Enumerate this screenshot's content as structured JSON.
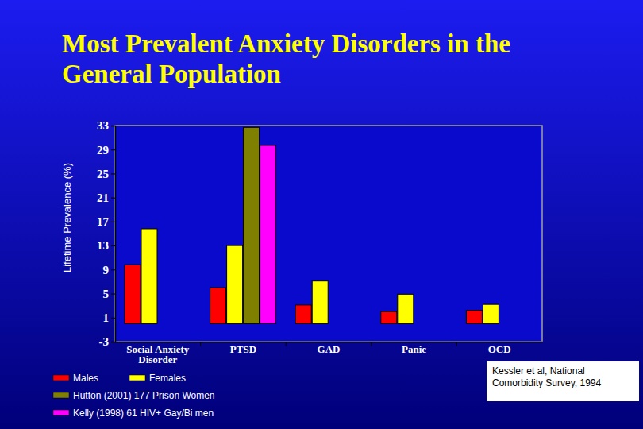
{
  "chart_data": {
    "type": "bar",
    "title": "Most Prevalent Anxiety Disorders in the General Population",
    "y_label": "Lifetime Prevalence (%)",
    "categories": [
      "Social Anxiety Disorder",
      "PTSD",
      "GAD",
      "Panic",
      "OCD"
    ],
    "series": [
      {
        "name": "Males",
        "color": "#ff0000",
        "values": [
          9.8,
          6.0,
          3.1,
          2.0,
          2.2
        ]
      },
      {
        "name": "Females",
        "color": "#ffff00",
        "values": [
          15.8,
          13.0,
          7.1,
          4.9,
          3.2
        ]
      },
      {
        "name": "Hutton (2001) 177 Prison Women",
        "color": "#808000",
        "values": [
          null,
          32.7,
          null,
          null,
          null
        ]
      },
      {
        "name": "Kelly (1998) 61 HIV+ Gay/Bi men",
        "color": "#ff00ff",
        "values": [
          null,
          29.7,
          null,
          null,
          null
        ]
      }
    ],
    "ylim": [
      -3,
      33
    ],
    "yticks": [
      -3,
      1,
      5,
      9,
      13,
      17,
      21,
      25,
      29,
      33
    ],
    "grid": false,
    "legend": "bottom",
    "annotation": "Kessler et al, National Comorbidity Survey, 1994"
  }
}
